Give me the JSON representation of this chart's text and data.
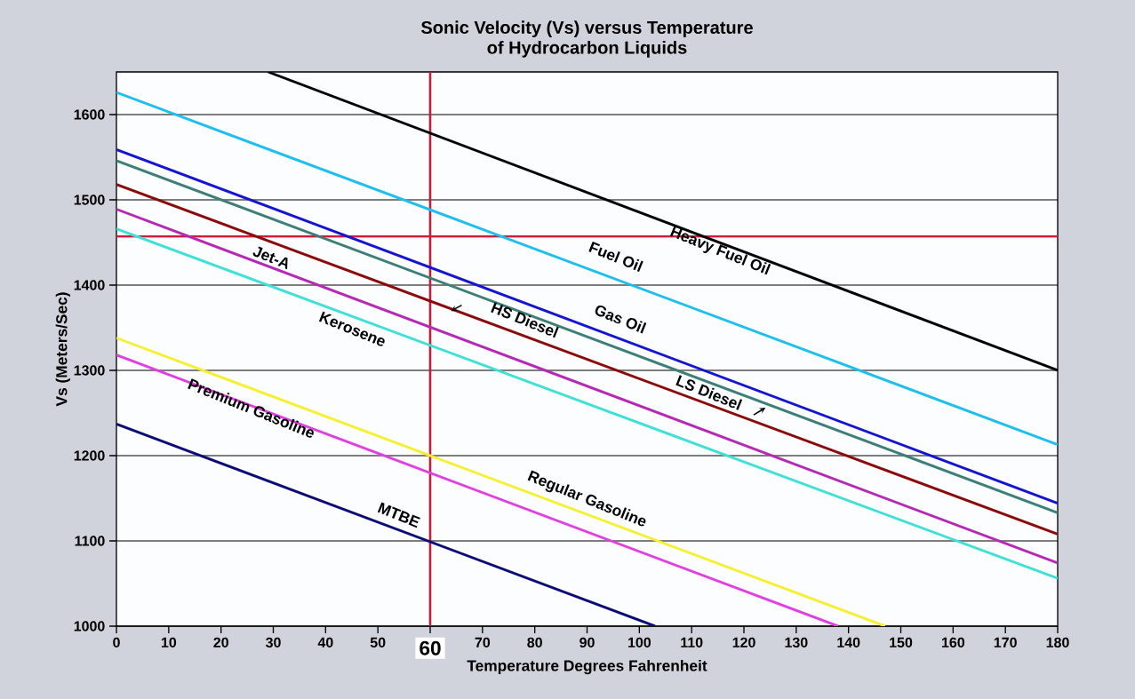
{
  "chart_data": {
    "type": "line",
    "title": "Sonic Velocity (Vs) versus Temperature",
    "subtitle": "of Hydrocarbon Liquids",
    "xlabel": "Temperature Degrees Fahrenheit",
    "ylabel": "Vs (Meters/Sec)",
    "xlim": [
      0,
      180
    ],
    "ylim": [
      1000,
      1650
    ],
    "xticks": [
      0,
      10,
      20,
      30,
      40,
      50,
      60,
      70,
      80,
      90,
      100,
      110,
      120,
      130,
      140,
      150,
      160,
      170,
      180
    ],
    "yticks": [
      1000,
      1100,
      1200,
      1300,
      1400,
      1500,
      1600
    ],
    "grid": "y",
    "marker": "none",
    "line_style": "solid",
    "series": [
      {
        "name": "Heavy Fuel Oil",
        "color": "#000000",
        "x": [
          29,
          180
        ],
        "values": [
          1650,
          1300
        ]
      },
      {
        "name": "Fuel Oil",
        "color": "#1ebfef",
        "x": [
          0,
          180
        ],
        "values": [
          1626,
          1213
        ]
      },
      {
        "name": "Gas Oil",
        "color": "#1414d2",
        "x": [
          0,
          180
        ],
        "values": [
          1559,
          1144
        ]
      },
      {
        "name": "LS Diesel",
        "color": "#3d7f78",
        "x": [
          0,
          180
        ],
        "values": [
          1546,
          1133
        ]
      },
      {
        "name": "HS Diesel",
        "color": "#8b0a0a",
        "x": [
          0,
          180
        ],
        "values": [
          1518,
          1108
        ]
      },
      {
        "name": "Jet-A",
        "color": "#b52ab5",
        "x": [
          0,
          180
        ],
        "values": [
          1489,
          1074
        ]
      },
      {
        "name": "Kerosene",
        "color": "#40e0d8",
        "x": [
          0,
          180
        ],
        "values": [
          1466,
          1056
        ]
      },
      {
        "name": "Regular Gasoline",
        "color": "#f5f032",
        "x": [
          0,
          147
        ],
        "values": [
          1338,
          1000
        ]
      },
      {
        "name": "Premium Gasoline",
        "color": "#e040e0",
        "x": [
          0,
          138
        ],
        "values": [
          1318,
          1000
        ]
      },
      {
        "name": "MTBE",
        "color": "#0c0c78",
        "x": [
          0,
          103
        ],
        "values": [
          1237,
          1000
        ]
      }
    ],
    "ref_lines": [
      {
        "axis": "x",
        "value": 60,
        "color": "#c0203c"
      },
      {
        "axis": "y",
        "value": 1457,
        "color": "#d01c3c"
      }
    ]
  }
}
